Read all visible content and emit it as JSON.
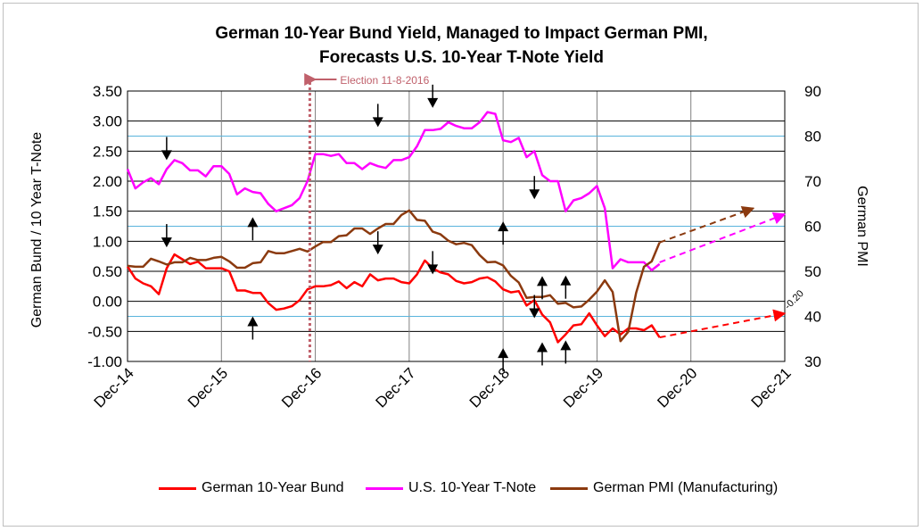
{
  "title": {
    "line1": "German 10-Year Bund Yield, Managed to Impact German PMI,",
    "line2": "Forecasts U.S. 10-Year T-Note Yield"
  },
  "chart_data": {
    "type": "line",
    "x_labels": [
      "Dec-14",
      "Dec-15",
      "Dec-16",
      "Dec-17",
      "Dec-18",
      "Dec-19",
      "Dec-20",
      "Dec-21"
    ],
    "x_range_months": [
      0,
      84
    ],
    "y_left": {
      "label": "German Bund  /  10 Year T-Note",
      "range": [
        -1.0,
        3.5
      ],
      "ticks": [
        "3.50",
        "3.00",
        "2.50",
        "2.00",
        "1.50",
        "1.00",
        "0.50",
        "0.00",
        "-0.50",
        "-1.00"
      ],
      "tick_values": [
        3.5,
        3.0,
        2.5,
        2.0,
        1.5,
        1.0,
        0.5,
        0.0,
        -0.5,
        -1.0
      ]
    },
    "y_right": {
      "label": "German PMI",
      "range": [
        30,
        90
      ],
      "ticks": [
        "90",
        "80",
        "70",
        "60",
        "50",
        "40",
        "30"
      ],
      "tick_values": [
        90,
        80,
        70,
        60,
        50,
        40,
        30
      ]
    },
    "reference_lines_left": [
      2.75,
      1.25,
      -0.25
    ],
    "annotation_election": "Election 11-8-2016",
    "election_month": 23.3,
    "forecast_label": "-0.20",
    "series": [
      {
        "name": "German 10-Year Bund",
        "color": "#ff0000",
        "axis": "left",
        "points": [
          [
            0,
            0.58
          ],
          [
            1,
            0.38
          ],
          [
            2,
            0.3
          ],
          [
            3,
            0.25
          ],
          [
            4,
            0.12
          ],
          [
            5,
            0.55
          ],
          [
            6,
            0.78
          ],
          [
            7,
            0.7
          ],
          [
            8,
            0.62
          ],
          [
            9,
            0.66
          ],
          [
            10,
            0.55
          ],
          [
            11,
            0.55
          ],
          [
            12,
            0.55
          ],
          [
            13,
            0.5
          ],
          [
            14,
            0.18
          ],
          [
            15,
            0.18
          ],
          [
            16,
            0.14
          ],
          [
            17,
            0.14
          ],
          [
            18,
            -0.03
          ],
          [
            19,
            -0.14
          ],
          [
            20,
            -0.12
          ],
          [
            21,
            -0.08
          ],
          [
            22,
            0.02
          ],
          [
            23,
            0.2
          ],
          [
            24,
            0.25
          ],
          [
            25,
            0.25
          ],
          [
            26,
            0.27
          ],
          [
            27,
            0.33
          ],
          [
            28,
            0.22
          ],
          [
            29,
            0.32
          ],
          [
            30,
            0.25
          ],
          [
            31,
            0.45
          ],
          [
            32,
            0.35
          ],
          [
            33,
            0.38
          ],
          [
            34,
            0.38
          ],
          [
            35,
            0.32
          ],
          [
            36,
            0.3
          ],
          [
            37,
            0.45
          ],
          [
            38,
            0.68
          ],
          [
            39,
            0.55
          ],
          [
            40,
            0.48
          ],
          [
            41,
            0.45
          ],
          [
            42,
            0.34
          ],
          [
            43,
            0.3
          ],
          [
            44,
            0.32
          ],
          [
            45,
            0.38
          ],
          [
            46,
            0.4
          ],
          [
            47,
            0.33
          ],
          [
            48,
            0.2
          ],
          [
            49,
            0.15
          ],
          [
            50,
            0.17
          ],
          [
            51,
            -0.07
          ],
          [
            52,
            0.02
          ],
          [
            53,
            -0.22
          ],
          [
            54,
            -0.35
          ],
          [
            55,
            -0.68
          ],
          [
            56,
            -0.55
          ],
          [
            57,
            -0.4
          ],
          [
            58,
            -0.38
          ],
          [
            59,
            -0.2
          ],
          [
            60,
            -0.4
          ],
          [
            61,
            -0.58
          ],
          [
            62,
            -0.45
          ],
          [
            63,
            -0.55
          ],
          [
            64,
            -0.45
          ],
          [
            65,
            -0.45
          ],
          [
            66,
            -0.48
          ],
          [
            67,
            -0.4
          ],
          [
            68,
            -0.6
          ]
        ]
      },
      {
        "name": "U.S. 10-Year T-Note",
        "color": "#ff00ff",
        "axis": "left",
        "points": [
          [
            0,
            2.2
          ],
          [
            1,
            1.88
          ],
          [
            2,
            1.98
          ],
          [
            3,
            2.05
          ],
          [
            4,
            1.95
          ],
          [
            5,
            2.2
          ],
          [
            6,
            2.35
          ],
          [
            7,
            2.3
          ],
          [
            8,
            2.18
          ],
          [
            9,
            2.18
          ],
          [
            10,
            2.08
          ],
          [
            11,
            2.25
          ],
          [
            12,
            2.25
          ],
          [
            13,
            2.12
          ],
          [
            14,
            1.78
          ],
          [
            15,
            1.88
          ],
          [
            16,
            1.82
          ],
          [
            17,
            1.8
          ],
          [
            18,
            1.62
          ],
          [
            19,
            1.5
          ],
          [
            20,
            1.55
          ],
          [
            21,
            1.6
          ],
          [
            22,
            1.72
          ],
          [
            23,
            2.0
          ],
          [
            24,
            2.45
          ],
          [
            25,
            2.45
          ],
          [
            26,
            2.42
          ],
          [
            27,
            2.45
          ],
          [
            28,
            2.3
          ],
          [
            29,
            2.3
          ],
          [
            30,
            2.2
          ],
          [
            31,
            2.3
          ],
          [
            32,
            2.25
          ],
          [
            33,
            2.22
          ],
          [
            34,
            2.35
          ],
          [
            35,
            2.35
          ],
          [
            36,
            2.4
          ],
          [
            37,
            2.58
          ],
          [
            38,
            2.85
          ],
          [
            39,
            2.85
          ],
          [
            40,
            2.87
          ],
          [
            41,
            2.98
          ],
          [
            42,
            2.92
          ],
          [
            43,
            2.88
          ],
          [
            44,
            2.88
          ],
          [
            45,
            2.98
          ],
          [
            46,
            3.15
          ],
          [
            47,
            3.12
          ],
          [
            48,
            2.68
          ],
          [
            49,
            2.65
          ],
          [
            50,
            2.72
          ],
          [
            51,
            2.4
          ],
          [
            52,
            2.5
          ],
          [
            53,
            2.1
          ],
          [
            54,
            2.0
          ],
          [
            55,
            2.0
          ],
          [
            56,
            1.5
          ],
          [
            57,
            1.68
          ],
          [
            58,
            1.72
          ],
          [
            59,
            1.8
          ],
          [
            60,
            1.92
          ],
          [
            61,
            1.55
          ],
          [
            62,
            0.55
          ],
          [
            63,
            0.7
          ],
          [
            64,
            0.65
          ],
          [
            65,
            0.65
          ],
          [
            66,
            0.65
          ],
          [
            67,
            0.52
          ],
          [
            68,
            0.62
          ]
        ]
      },
      {
        "name": "German PMI (Manufacturing)",
        "color": "#8b3a0f",
        "axis": "right",
        "points": [
          [
            0,
            51.2
          ],
          [
            1,
            51
          ],
          [
            2,
            51
          ],
          [
            3,
            52.8
          ],
          [
            4,
            52.2
          ],
          [
            5,
            51.5
          ],
          [
            6,
            52
          ],
          [
            7,
            52
          ],
          [
            8,
            53
          ],
          [
            9,
            52.5
          ],
          [
            10,
            52.5
          ],
          [
            11,
            53
          ],
          [
            12,
            53.2
          ],
          [
            13,
            52.2
          ],
          [
            14,
            50.8
          ],
          [
            15,
            50.8
          ],
          [
            16,
            51.8
          ],
          [
            17,
            52
          ],
          [
            18,
            54.5
          ],
          [
            19,
            54
          ],
          [
            20,
            54
          ],
          [
            21,
            54.5
          ],
          [
            22,
            55
          ],
          [
            23,
            54.4
          ],
          [
            24,
            55.5
          ],
          [
            25,
            56.5
          ],
          [
            26,
            56.5
          ],
          [
            27,
            57.8
          ],
          [
            28,
            58
          ],
          [
            29,
            59.5
          ],
          [
            30,
            59.5
          ],
          [
            31,
            58.3
          ],
          [
            32,
            59.5
          ],
          [
            33,
            60.5
          ],
          [
            34,
            60.5
          ],
          [
            35,
            62.5
          ],
          [
            36,
            63.5
          ],
          [
            37,
            61.4
          ],
          [
            38,
            61.2
          ],
          [
            39,
            58.8
          ],
          [
            40,
            58.2
          ],
          [
            41,
            56.8
          ],
          [
            42,
            56
          ],
          [
            43,
            56.3
          ],
          [
            44,
            55.8
          ],
          [
            45,
            53.6
          ],
          [
            46,
            52
          ],
          [
            47,
            52.1
          ],
          [
            48,
            51.3
          ],
          [
            49,
            49
          ],
          [
            50,
            47.5
          ],
          [
            51,
            44.1
          ],
          [
            52,
            44.3
          ],
          [
            53,
            44.3
          ],
          [
            54,
            44.7
          ],
          [
            55,
            42.8
          ],
          [
            56,
            43
          ],
          [
            57,
            42
          ],
          [
            58,
            42.2
          ],
          [
            59,
            43.7
          ],
          [
            60,
            45.5
          ],
          [
            61,
            48
          ],
          [
            62,
            45.4
          ],
          [
            63,
            34.5
          ],
          [
            64,
            36.6
          ],
          [
            65,
            45.2
          ],
          [
            66,
            51
          ],
          [
            67,
            52.2
          ],
          [
            68,
            56.4
          ]
        ]
      }
    ],
    "forecast_lines": [
      {
        "series": "German PMI (Manufacturing)",
        "axis": "right",
        "from": [
          68,
          56.4
        ],
        "to": [
          80,
          64
        ],
        "color": "#8b3a0f"
      },
      {
        "series": "U.S. 10-Year T-Note",
        "axis": "left",
        "from": [
          68,
          0.65
        ],
        "to": [
          84,
          1.45
        ],
        "color": "#ff00ff"
      },
      {
        "series": "German 10-Year Bund",
        "axis": "left",
        "from": [
          68,
          -0.6
        ],
        "to": [
          84,
          -0.2
        ],
        "color": "#ff0000"
      }
    ],
    "arrows": [
      {
        "month": 5,
        "dir": "down",
        "tip": 2.35
      },
      {
        "month": 5,
        "dir": "down",
        "tip": 0.9
      },
      {
        "month": 16,
        "dir": "up",
        "tip": 1.4
      },
      {
        "month": 16,
        "dir": "up",
        "tip": -0.25
      },
      {
        "month": 32,
        "dir": "down",
        "tip": 2.9
      },
      {
        "month": 32,
        "dir": "down",
        "tip": 0.78
      },
      {
        "month": 39,
        "dir": "down",
        "tip": 3.22
      },
      {
        "month": 39,
        "dir": "down",
        "tip": 0.45
      },
      {
        "month": 48,
        "dir": "up",
        "tip": 1.33
      },
      {
        "month": 48,
        "dir": "up",
        "tip": -0.78
      },
      {
        "month": 52,
        "dir": "down",
        "tip": 1.7
      },
      {
        "month": 52,
        "dir": "down",
        "tip": -0.28
      },
      {
        "month": 53,
        "dir": "up",
        "tip": 0.42
      },
      {
        "month": 53,
        "dir": "up",
        "tip": -0.68
      },
      {
        "month": 56,
        "dir": "up",
        "tip": 0.43
      },
      {
        "month": 56,
        "dir": "up",
        "tip": -0.65
      }
    ]
  },
  "legend": {
    "items": [
      {
        "label": "German 10-Year Bund",
        "color": "#ff0000"
      },
      {
        "label": "U.S. 10-Year T-Note",
        "color": "#ff00ff"
      },
      {
        "label": "German PMI (Manufacturing)",
        "color": "#8b3a0f"
      }
    ]
  }
}
